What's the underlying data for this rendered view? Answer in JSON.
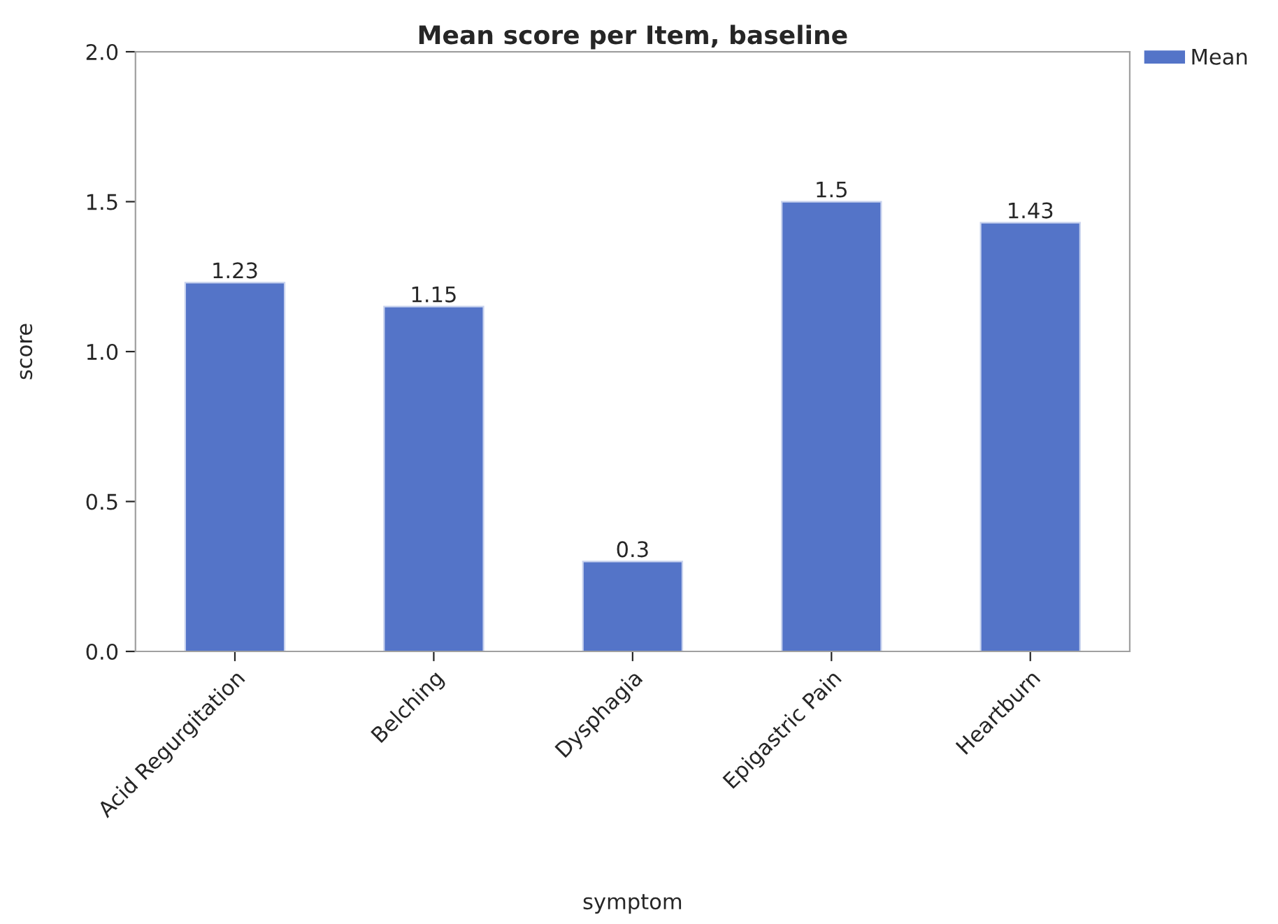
{
  "chart_data": {
    "type": "bar",
    "title": "Mean score per Item, baseline",
    "xlabel": "symptom",
    "ylabel": "score",
    "categories": [
      "Acid Regurgitation",
      "Belching",
      "Dysphagia",
      "Epigastric Pain",
      "Heartburn"
    ],
    "series": [
      {
        "name": "Mean",
        "color": "#5474c8",
        "values": [
          1.23,
          1.15,
          0.3,
          1.5,
          1.43
        ]
      }
    ],
    "ylim": [
      0,
      2
    ],
    "yticks": [
      {
        "value": 0,
        "label": "0.0"
      },
      {
        "value": 0.5,
        "label": "0.5"
      },
      {
        "value": 1,
        "label": "1.0"
      },
      {
        "value": 1.5,
        "label": "1.5"
      },
      {
        "value": 2,
        "label": "2.0"
      }
    ],
    "data_labels": true,
    "legend": "top right"
  }
}
